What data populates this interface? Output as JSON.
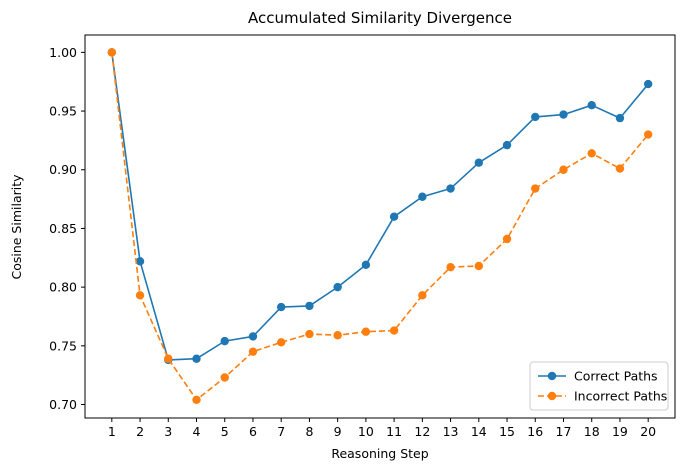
{
  "chart_data": {
    "type": "line",
    "title": "Accumulated Similarity Divergence",
    "xlabel": "Reasoning Step",
    "ylabel": "Cosine Similarity",
    "x": [
      1,
      2,
      3,
      4,
      5,
      6,
      7,
      8,
      9,
      10,
      11,
      12,
      13,
      14,
      15,
      16,
      17,
      18,
      19,
      20
    ],
    "xlim": [
      0.05,
      20.95
    ],
    "ylim": [
      0.6885,
      1.0148
    ],
    "yticks": [
      0.7,
      0.75,
      0.8,
      0.85,
      0.9,
      0.95,
      1.0
    ],
    "ytick_labels": [
      "0.70",
      "0.75",
      "0.80",
      "0.85",
      "0.90",
      "0.95",
      "1.00"
    ],
    "grid": false,
    "legend_position": "lower-right",
    "series": [
      {
        "name": "Correct Paths",
        "color": "#1f77b4",
        "line_style": "solid",
        "marker": "circle",
        "values": [
          1.0,
          0.822,
          0.738,
          0.739,
          0.754,
          0.758,
          0.783,
          0.784,
          0.8,
          0.819,
          0.86,
          0.877,
          0.884,
          0.906,
          0.921,
          0.945,
          0.947,
          0.955,
          0.944,
          0.973
        ]
      },
      {
        "name": "Incorrect Paths",
        "color": "#ff7f0e",
        "line_style": "dashed",
        "marker": "circle",
        "values": [
          1.0,
          0.793,
          0.739,
          0.704,
          0.723,
          0.745,
          0.753,
          0.76,
          0.759,
          0.762,
          0.763,
          0.793,
          0.817,
          0.818,
          0.841,
          0.884,
          0.9,
          0.914,
          0.901,
          0.93
        ]
      }
    ]
  }
}
